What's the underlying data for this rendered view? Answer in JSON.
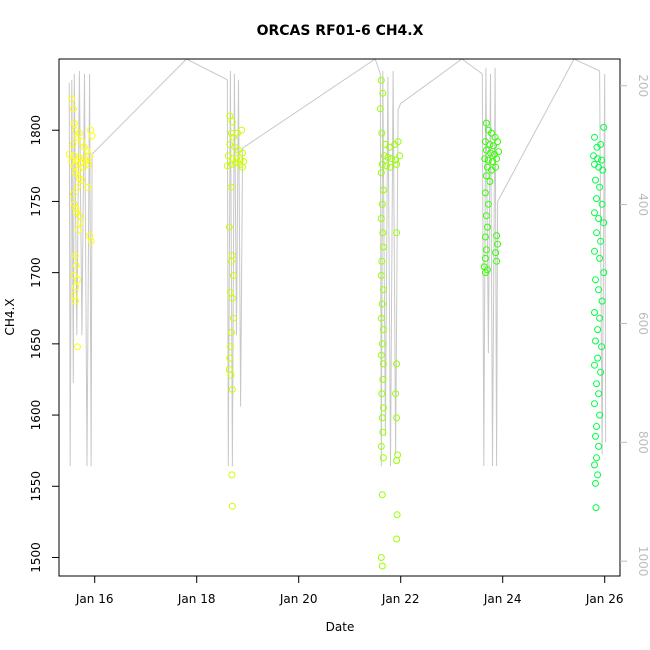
{
  "chart_data": {
    "type": "scatter",
    "title": "ORCAS RF01-6 CH4.X",
    "xlabel": "Date",
    "ylabel": "CH4.X",
    "x_ticks": [
      "Jan 16",
      "Jan 18",
      "Jan 20",
      "Jan 22",
      "Jan 24",
      "Jan 26"
    ],
    "xlim_days": [
      15.3,
      26.3
    ],
    "y_ticks": [
      1500,
      1550,
      1600,
      1650,
      1700,
      1750,
      1800
    ],
    "ylim": [
      1487,
      1850
    ],
    "y2_ticks": [
      200,
      400,
      600,
      800,
      1000
    ],
    "y2lim": [
      155,
      1025
    ],
    "y2_reversed": true,
    "grid": false,
    "colors": {
      "flight1": "#ffff00",
      "flight2": "#ccff00",
      "flight3": "#99ff00",
      "flight4": "#33ff00",
      "flight5": "#00ff44",
      "pressure_trace": "#c8c8c8"
    },
    "series": [
      {
        "flight": 1,
        "color": "#ffff00",
        "points": [
          [
            15.55,
            1822
          ],
          [
            15.58,
            1815
          ],
          [
            15.6,
            1805
          ],
          [
            15.62,
            1800
          ],
          [
            15.57,
            1790
          ],
          [
            15.65,
            1795
          ],
          [
            15.7,
            1798
          ],
          [
            15.75,
            1792
          ],
          [
            15.8,
            1788
          ],
          [
            15.85,
            1786
          ],
          [
            15.5,
            1783
          ],
          [
            15.6,
            1782
          ],
          [
            15.7,
            1781
          ],
          [
            15.8,
            1780
          ],
          [
            15.9,
            1782
          ],
          [
            15.55,
            1778
          ],
          [
            15.65,
            1779
          ],
          [
            15.72,
            1777
          ],
          [
            15.82,
            1778
          ],
          [
            15.88,
            1776
          ],
          [
            15.6,
            1775
          ],
          [
            15.68,
            1772
          ],
          [
            15.78,
            1774
          ],
          [
            15.62,
            1770
          ],
          [
            15.7,
            1766
          ],
          [
            15.66,
            1760
          ],
          [
            15.58,
            1755
          ],
          [
            15.6,
            1748
          ],
          [
            15.63,
            1745
          ],
          [
            15.65,
            1742
          ],
          [
            15.7,
            1740
          ],
          [
            15.72,
            1735
          ],
          [
            15.68,
            1730
          ],
          [
            15.9,
            1726
          ],
          [
            15.93,
            1722
          ],
          [
            15.62,
            1712
          ],
          [
            15.64,
            1705
          ],
          [
            15.6,
            1698
          ],
          [
            15.66,
            1695
          ],
          [
            15.63,
            1690
          ],
          [
            15.6,
            1684
          ],
          [
            15.62,
            1680
          ],
          [
            15.66,
            1648
          ],
          [
            15.92,
            1800
          ],
          [
            15.95,
            1796
          ],
          [
            15.86,
            1760
          ],
          [
            15.74,
            1765
          ]
        ]
      },
      {
        "flight": 2,
        "color": "#ccff00",
        "points": [
          [
            18.65,
            1810
          ],
          [
            18.7,
            1806
          ],
          [
            18.68,
            1798
          ],
          [
            18.72,
            1795
          ],
          [
            18.8,
            1798
          ],
          [
            18.88,
            1800
          ],
          [
            18.65,
            1790
          ],
          [
            18.75,
            1788
          ],
          [
            18.82,
            1786
          ],
          [
            18.9,
            1784
          ],
          [
            18.62,
            1782
          ],
          [
            18.7,
            1780
          ],
          [
            18.78,
            1780
          ],
          [
            18.85,
            1779
          ],
          [
            18.92,
            1778
          ],
          [
            18.6,
            1775
          ],
          [
            18.68,
            1776
          ],
          [
            18.76,
            1777
          ],
          [
            18.85,
            1776
          ],
          [
            18.9,
            1774
          ],
          [
            18.67,
            1760
          ],
          [
            18.64,
            1732
          ],
          [
            18.7,
            1712
          ],
          [
            18.68,
            1708
          ],
          [
            18.72,
            1698
          ],
          [
            18.66,
            1686
          ],
          [
            18.7,
            1682
          ],
          [
            18.72,
            1668
          ],
          [
            18.68,
            1658
          ],
          [
            18.66,
            1648
          ],
          [
            18.65,
            1640
          ],
          [
            18.64,
            1632
          ],
          [
            18.67,
            1628
          ],
          [
            18.7,
            1618
          ],
          [
            18.69,
            1558
          ],
          [
            18.7,
            1536
          ]
        ]
      },
      {
        "flight": 3,
        "color": "#99ff00",
        "points": [
          [
            21.62,
            1835
          ],
          [
            21.65,
            1826
          ],
          [
            21.6,
            1815
          ],
          [
            21.63,
            1798
          ],
          [
            21.7,
            1790
          ],
          [
            21.78,
            1788
          ],
          [
            21.88,
            1790
          ],
          [
            21.95,
            1792
          ],
          [
            21.68,
            1782
          ],
          [
            21.75,
            1781
          ],
          [
            21.82,
            1780
          ],
          [
            21.9,
            1779
          ],
          [
            21.98,
            1782
          ],
          [
            21.64,
            1776
          ],
          [
            21.72,
            1775
          ],
          [
            21.8,
            1774
          ],
          [
            21.92,
            1776
          ],
          [
            21.62,
            1770
          ],
          [
            21.66,
            1758
          ],
          [
            21.64,
            1748
          ],
          [
            21.62,
            1738
          ],
          [
            21.65,
            1728
          ],
          [
            21.92,
            1728
          ],
          [
            21.66,
            1718
          ],
          [
            21.63,
            1708
          ],
          [
            21.62,
            1698
          ],
          [
            21.66,
            1688
          ],
          [
            21.64,
            1678
          ],
          [
            21.62,
            1668
          ],
          [
            21.66,
            1660
          ],
          [
            21.64,
            1650
          ],
          [
            21.62,
            1642
          ],
          [
            21.66,
            1636
          ],
          [
            21.92,
            1636
          ],
          [
            21.65,
            1625
          ],
          [
            21.63,
            1615
          ],
          [
            21.66,
            1605
          ],
          [
            21.64,
            1598
          ],
          [
            21.92,
            1598
          ],
          [
            21.65,
            1588
          ],
          [
            21.62,
            1578
          ],
          [
            21.66,
            1570
          ],
          [
            21.94,
            1572
          ],
          [
            21.92,
            1568
          ],
          [
            21.64,
            1544
          ],
          [
            21.93,
            1530
          ],
          [
            21.92,
            1513
          ],
          [
            21.62,
            1500
          ],
          [
            21.64,
            1494
          ],
          [
            21.9,
            1615
          ]
        ]
      },
      {
        "flight": 4,
        "color": "#33ff00",
        "points": [
          [
            23.68,
            1805
          ],
          [
            23.72,
            1800
          ],
          [
            23.78,
            1798
          ],
          [
            23.85,
            1795
          ],
          [
            23.66,
            1792
          ],
          [
            23.75,
            1790
          ],
          [
            23.82,
            1789
          ],
          [
            23.9,
            1792
          ],
          [
            23.68,
            1786
          ],
          [
            23.76,
            1784
          ],
          [
            23.84,
            1783
          ],
          [
            23.92,
            1785
          ],
          [
            23.65,
            1780
          ],
          [
            23.72,
            1779
          ],
          [
            23.8,
            1778
          ],
          [
            23.88,
            1780
          ],
          [
            23.7,
            1774
          ],
          [
            23.78,
            1772
          ],
          [
            23.86,
            1774
          ],
          [
            23.68,
            1768
          ],
          [
            23.75,
            1764
          ],
          [
            23.66,
            1756
          ],
          [
            23.72,
            1748
          ],
          [
            23.68,
            1740
          ],
          [
            23.7,
            1732
          ],
          [
            23.66,
            1725
          ],
          [
            23.88,
            1726
          ],
          [
            23.9,
            1720
          ],
          [
            23.86,
            1714
          ],
          [
            23.88,
            1708
          ],
          [
            23.68,
            1716
          ],
          [
            23.66,
            1710
          ],
          [
            23.64,
            1704
          ],
          [
            23.66,
            1700
          ],
          [
            23.7,
            1702
          ]
        ]
      },
      {
        "flight": 5,
        "color": "#00ff44",
        "points": [
          [
            25.8,
            1795
          ],
          [
            25.98,
            1802
          ],
          [
            25.85,
            1788
          ],
          [
            25.92,
            1790
          ],
          [
            25.78,
            1782
          ],
          [
            25.86,
            1780
          ],
          [
            25.94,
            1779
          ],
          [
            25.8,
            1776
          ],
          [
            25.88,
            1774
          ],
          [
            25.96,
            1772
          ],
          [
            25.82,
            1765
          ],
          [
            25.9,
            1760
          ],
          [
            25.84,
            1752
          ],
          [
            25.95,
            1748
          ],
          [
            25.8,
            1742
          ],
          [
            25.88,
            1738
          ],
          [
            25.98,
            1735
          ],
          [
            25.84,
            1728
          ],
          [
            25.92,
            1722
          ],
          [
            25.8,
            1715
          ],
          [
            25.9,
            1710
          ],
          [
            25.98,
            1700
          ],
          [
            25.82,
            1695
          ],
          [
            25.88,
            1688
          ],
          [
            25.95,
            1680
          ],
          [
            25.8,
            1672
          ],
          [
            25.9,
            1668
          ],
          [
            25.86,
            1660
          ],
          [
            25.82,
            1652
          ],
          [
            25.94,
            1648
          ],
          [
            25.86,
            1640
          ],
          [
            25.8,
            1635
          ],
          [
            25.92,
            1630
          ],
          [
            25.84,
            1622
          ],
          [
            25.88,
            1615
          ],
          [
            25.8,
            1608
          ],
          [
            25.9,
            1600
          ],
          [
            25.84,
            1592
          ],
          [
            25.82,
            1585
          ],
          [
            25.88,
            1578
          ],
          [
            25.84,
            1570
          ],
          [
            25.8,
            1565
          ],
          [
            25.86,
            1558
          ],
          [
            25.82,
            1552
          ],
          [
            25.83,
            1535
          ]
        ]
      }
    ],
    "pressure_trace": [
      [
        15.5,
        195
      ],
      [
        15.52,
        840
      ],
      [
        15.55,
        190
      ],
      [
        15.58,
        700
      ],
      [
        15.6,
        180
      ],
      [
        15.65,
        620
      ],
      [
        15.7,
        175
      ],
      [
        15.75,
        620
      ],
      [
        15.8,
        180
      ],
      [
        15.85,
        840
      ],
      [
        15.9,
        180
      ],
      [
        15.93,
        840
      ],
      [
        15.95,
        315
      ],
      [
        17.8,
        155
      ],
      [
        18.6,
        190
      ],
      [
        18.62,
        840
      ],
      [
        18.66,
        175
      ],
      [
        18.7,
        840
      ],
      [
        18.74,
        180
      ],
      [
        18.78,
        620
      ],
      [
        18.82,
        190
      ],
      [
        18.86,
        740
      ],
      [
        18.9,
        305
      ],
      [
        21.5,
        155
      ],
      [
        21.6,
        180
      ],
      [
        21.62,
        840
      ],
      [
        21.65,
        175
      ],
      [
        21.7,
        790
      ],
      [
        21.75,
        185
      ],
      [
        21.8,
        840
      ],
      [
        21.85,
        175
      ],
      [
        21.9,
        820
      ],
      [
        21.95,
        240
      ],
      [
        22.0,
        230
      ],
      [
        23.2,
        155
      ],
      [
        23.6,
        180
      ],
      [
        23.63,
        840
      ],
      [
        23.67,
        170
      ],
      [
        23.72,
        650
      ],
      [
        23.76,
        180
      ],
      [
        23.8,
        840
      ],
      [
        23.85,
        170
      ],
      [
        23.88,
        840
      ],
      [
        23.9,
        395
      ],
      [
        25.4,
        155
      ],
      [
        25.9,
        175
      ],
      [
        25.95,
        820
      ],
      [
        26.0,
        180
      ],
      [
        26.02,
        800
      ]
    ]
  }
}
